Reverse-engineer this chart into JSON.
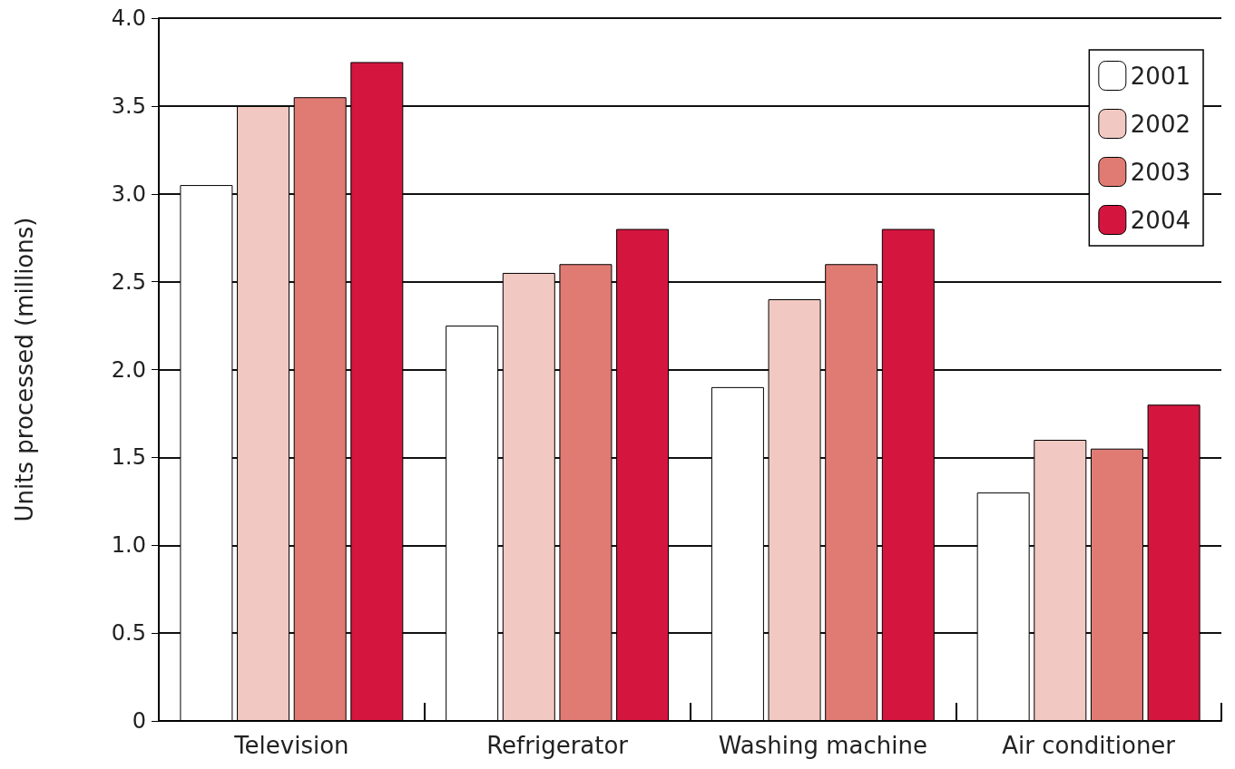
{
  "chart_data": {
    "type": "bar",
    "ylabel": "Units processed (millions)",
    "categories": [
      "Television",
      "Refrigerator",
      "Washing machine",
      "Air conditioner"
    ],
    "series": [
      {
        "name": "2001",
        "color": "#ffffff",
        "values": [
          3.05,
          2.25,
          1.9,
          1.3
        ]
      },
      {
        "name": "2002",
        "color": "#f2c9c2",
        "values": [
          3.5,
          2.55,
          2.4,
          1.6
        ]
      },
      {
        "name": "2003",
        "color": "#e07b74",
        "values": [
          3.55,
          2.6,
          2.6,
          1.55
        ]
      },
      {
        "name": "2004",
        "color": "#d4163f",
        "values": [
          3.75,
          2.8,
          2.8,
          1.8
        ]
      }
    ],
    "ylim": [
      0,
      4
    ],
    "yticks": [
      0,
      0.5,
      {
        "value": 1,
        "label": "1.0"
      },
      1.5,
      {
        "value": 2,
        "label": "2.0"
      },
      2.5,
      {
        "value": 3,
        "label": "3.0"
      },
      3.5,
      {
        "value": 4,
        "label": "4.0"
      }
    ],
    "grid": "y",
    "legend": "top right"
  }
}
